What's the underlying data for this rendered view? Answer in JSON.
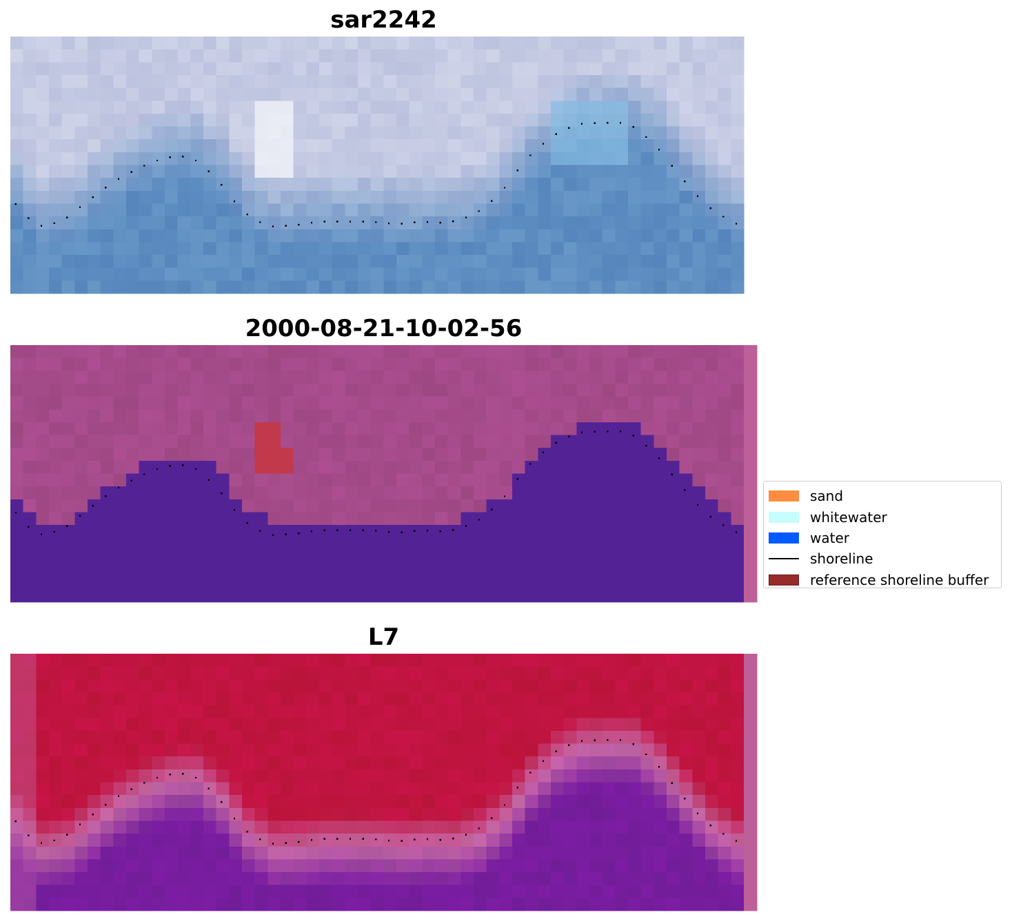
{
  "panels": [
    {
      "title": "sar2242",
      "kind": "rgb"
    },
    {
      "title": "2000-08-21-10-02-56",
      "kind": "classified"
    },
    {
      "title": "L7",
      "kind": "mndwi"
    }
  ],
  "legend": {
    "items": [
      {
        "label": "sand",
        "type": "patch",
        "color": "#ff8c3f"
      },
      {
        "label": "whitewater",
        "type": "patch",
        "color": "#c6fdfd"
      },
      {
        "label": "water",
        "type": "patch",
        "color": "#005aff"
      },
      {
        "label": "shoreline",
        "type": "line",
        "color": "#000000"
      },
      {
        "label": "reference shoreline buffer",
        "type": "patch",
        "color": "#982a2a",
        "edge": "#6b1a1a"
      }
    ]
  },
  "colors": {
    "sky_light": "#c5cae3",
    "water_blue": "#5f8ec2",
    "class_upper": "#a54b8a",
    "class_water": "#532395",
    "class_buffer": "#c2394c",
    "mndwi_upper": "#c01440",
    "mndwi_mid": "#c668a6",
    "mndwi_lower": "#771d9e",
    "strip": "#bd5f98",
    "shoreline_points": "#000000"
  },
  "shoreline_trace": {
    "x": [
      0,
      2,
      4,
      6,
      8,
      10,
      12,
      14,
      16,
      18,
      20,
      22,
      24,
      26,
      28,
      30,
      32,
      34,
      36,
      38,
      40,
      42,
      44,
      46,
      48,
      50,
      52,
      54,
      56,
      57
    ],
    "y": [
      13.8,
      16.0,
      15.6,
      14.0,
      12.5,
      11.4,
      10.6,
      10.5,
      12.2,
      14.8,
      16.0,
      15.9,
      15.6,
      15.6,
      15.6,
      15.8,
      15.6,
      15.7,
      15.1,
      13.5,
      10.8,
      9.0,
      8.0,
      7.9,
      7.9,
      9.5,
      12.0,
      14.3,
      15.6,
      16.0
    ]
  }
}
